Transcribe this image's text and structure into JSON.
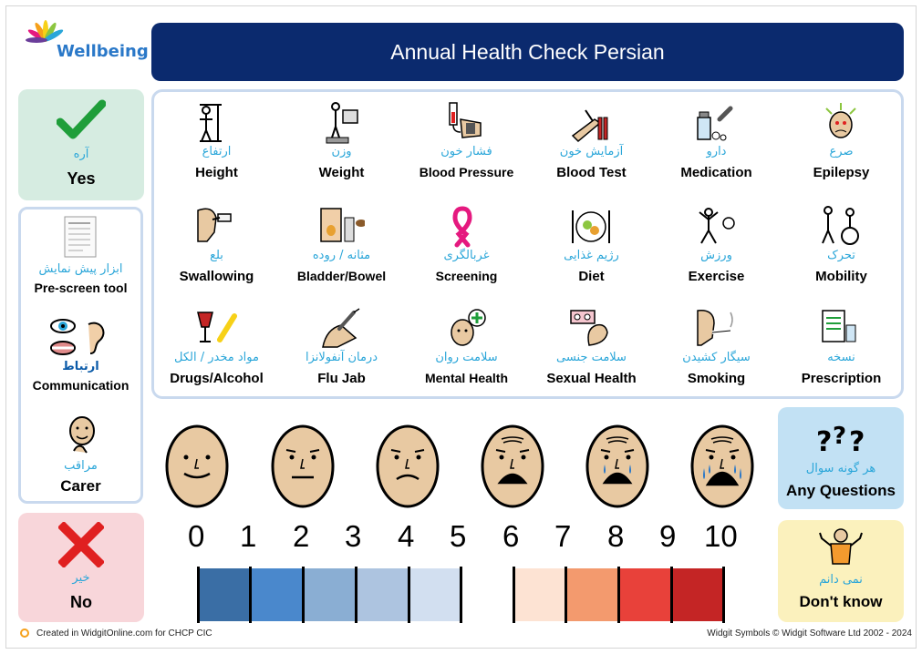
{
  "header": {
    "brand": "Wellbeing",
    "title": "Annual Health Check Persian"
  },
  "yes": {
    "persian": "آره",
    "english": "Yes",
    "icon": "check-icon",
    "color": "#1f9e3a"
  },
  "no": {
    "persian": "خیر",
    "english": "No",
    "icon": "cross-icon",
    "color": "#e02020"
  },
  "left_panel": {
    "items": [
      {
        "persian": "ابزار پیش نمایش",
        "english": "Pre-screen tool",
        "icon": "document-icon"
      },
      {
        "persian": "ارتباط",
        "english": "Communication",
        "icon": "eye-ear-mouth-icon"
      },
      {
        "persian": "مراقب",
        "english": "Carer",
        "icon": "carer-icon"
      }
    ]
  },
  "grid": {
    "items": [
      {
        "persian": "ارتفاع",
        "english": "Height",
        "icon": "height-icon"
      },
      {
        "persian": "وزن",
        "english": "Weight",
        "icon": "weight-icon"
      },
      {
        "persian": "فشار خون",
        "english": "Blood Pressure",
        "icon": "blood-pressure-icon"
      },
      {
        "persian": "آزمایش خون",
        "english": "Blood Test",
        "icon": "blood-test-icon"
      },
      {
        "persian": "دارو",
        "english": "Medication",
        "icon": "medication-icon"
      },
      {
        "persian": "صرع",
        "english": "Epilepsy",
        "icon": "epilepsy-icon"
      },
      {
        "persian": "بلع",
        "english": "Swallowing",
        "icon": "swallowing-icon"
      },
      {
        "persian": "مثانه / روده",
        "english": "Bladder/Bowel",
        "icon": "bladder-bowel-icon"
      },
      {
        "persian": "غربالگری",
        "english": "Screening",
        "icon": "ribbon-icon"
      },
      {
        "persian": "رژیم غذایی",
        "english": "Diet",
        "icon": "diet-icon"
      },
      {
        "persian": "ورزش",
        "english": "Exercise",
        "icon": "exercise-icon"
      },
      {
        "persian": "تحرک",
        "english": "Mobility",
        "icon": "mobility-icon"
      },
      {
        "persian": "مواد مخدر / الکل",
        "english": "Drugs/Alcohol",
        "icon": "drugs-alcohol-icon"
      },
      {
        "persian": "درمان آنفولانزا",
        "english": "Flu Jab",
        "icon": "flu-jab-icon"
      },
      {
        "persian": "سلامت روان",
        "english": "Mental Health",
        "icon": "mental-health-icon"
      },
      {
        "persian": "سلامت جنسی",
        "english": "Sexual Health",
        "icon": "sexual-health-icon"
      },
      {
        "persian": "سیگار کشیدن",
        "english": "Smoking",
        "icon": "smoking-icon"
      },
      {
        "persian": "نسخه",
        "english": "Prescription",
        "icon": "prescription-icon"
      }
    ]
  },
  "pain_scale": {
    "numbers": [
      "0",
      "1",
      "2",
      "3",
      "4",
      "5",
      "6",
      "7",
      "8",
      "9",
      "10"
    ],
    "colors": [
      "#3a6ea5",
      "#4a88cc",
      "#8aaed3",
      "#adc4e0",
      "#d2dff0",
      "#fde3d3",
      "#f39a6e",
      "#e8413a",
      "#c42525"
    ],
    "face_icons": [
      "face-0-icon",
      "face-2-icon",
      "face-4-icon",
      "face-6-icon",
      "face-8-icon",
      "face-10-icon"
    ]
  },
  "questions": {
    "persian": "هر گونه سوال",
    "english": "Any Questions",
    "icon": "question-marks-icon"
  },
  "dont_know": {
    "persian": "نمی دانم",
    "english": "Don't know",
    "icon": "shrug-icon"
  },
  "footer": {
    "left": "Created in WidgitOnline.com for CHCP CIC",
    "right": "Widgit Symbols © Widgit Software Ltd 2002 - 2024"
  }
}
